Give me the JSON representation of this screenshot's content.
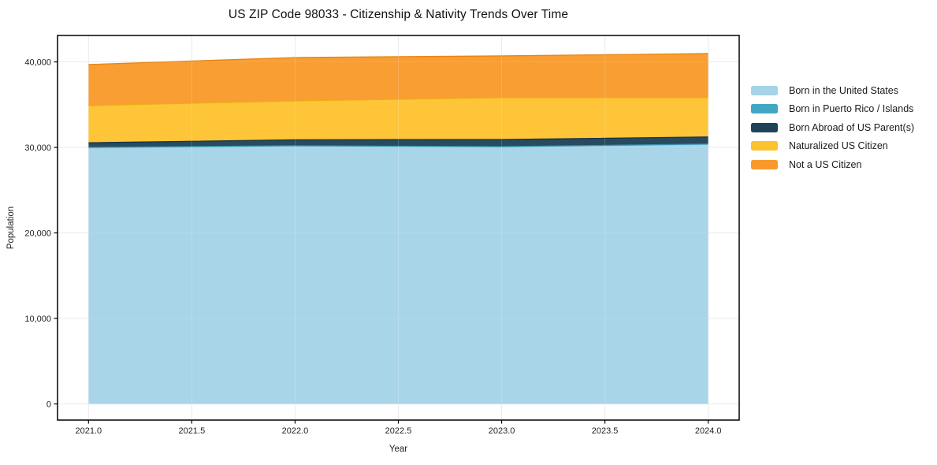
{
  "chart_data": {
    "type": "area",
    "stacked": true,
    "title": "US ZIP Code 98033 - Citizenship & Nativity Trends Over Time",
    "xlabel": "Year",
    "ylabel": "Population",
    "x": [
      2021,
      2022,
      2023,
      2024
    ],
    "series": [
      {
        "name": "Born in the United States",
        "color": "#a5d3e8",
        "edge_color": "#8cc2dc",
        "values": [
          29950,
          30150,
          30050,
          30350
        ]
      },
      {
        "name": "Born in Puerto Rico / Islands",
        "color": "#42a6c5",
        "edge_color": "#3494b2",
        "values": [
          40,
          40,
          40,
          40
        ]
      },
      {
        "name": "Born Abroad of US Parent(s)",
        "color": "#1f4458",
        "edge_color": "#173546",
        "values": [
          550,
          700,
          830,
          830
        ]
      },
      {
        "name": "Naturalized US Citizen",
        "color": "#fdc32f",
        "edge_color": "#eaae15",
        "values": [
          4350,
          4550,
          4900,
          4600
        ]
      },
      {
        "name": "Not a US Citizen",
        "color": "#f89a2b",
        "edge_color": "#e68513",
        "values": [
          4800,
          5070,
          4880,
          5160
        ]
      }
    ],
    "totals": [
      39690,
      40510,
      40700,
      40980
    ],
    "xlim": [
      2020.85,
      2024.15
    ],
    "ylim": [
      -1890,
      43090
    ],
    "x_ticks": [
      2021.0,
      2021.5,
      2022.0,
      2022.5,
      2023.0,
      2023.5,
      2024.0
    ],
    "x_tick_labels": [
      "2021.0",
      "2021.5",
      "2022.0",
      "2022.5",
      "2023.0",
      "2023.5",
      "2024.0"
    ],
    "y_ticks": [
      0,
      10000,
      20000,
      30000,
      40000
    ],
    "y_tick_labels": [
      "0",
      "10,000",
      "20,000",
      "30,000",
      "40,000"
    ],
    "grid": true,
    "grid_color": "#e7e7e7",
    "spine_color": "#000000",
    "background_color": "#ffffff",
    "fill_opacity": 0.96,
    "legend_position": "right"
  }
}
